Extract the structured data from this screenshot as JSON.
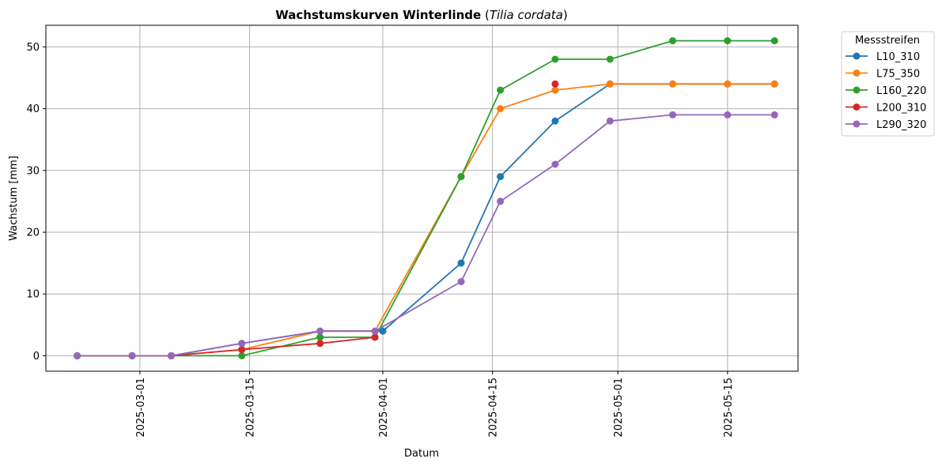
{
  "chart_data": {
    "type": "line",
    "title_main": "Wachstumskurven Winterlinde",
    "title_open": " (",
    "title_species": "Tilia cordata",
    "title_close": ")",
    "xlabel": "Datum",
    "ylabel": "Wachstum [mm]",
    "x_is_date": true,
    "xlim": [
      "2025-02-17",
      "2025-05-24"
    ],
    "ylim": [
      -2.5,
      53.5
    ],
    "x_ticks": [
      "2025-03-01",
      "2025-03-15",
      "2025-04-01",
      "2025-04-15",
      "2025-05-01",
      "2025-05-15"
    ],
    "y_ticks": [
      0,
      10,
      20,
      30,
      40,
      50
    ],
    "grid": true,
    "legend_title": "Messstreifen",
    "legend_position": "outside-top-right",
    "series": [
      {
        "name": "L10_310",
        "color": "#1f77b4",
        "points": [
          [
            "2025-02-21",
            0
          ],
          [
            "2025-02-28",
            0
          ],
          [
            "2025-03-05",
            0
          ],
          [
            "2025-03-14",
            2
          ],
          [
            "2025-03-24",
            4
          ],
          [
            "2025-04-01",
            4
          ],
          [
            "2025-04-11",
            15
          ],
          [
            "2025-04-16",
            29
          ],
          [
            "2025-04-23",
            38
          ],
          [
            "2025-04-30",
            44
          ],
          [
            "2025-05-08",
            44
          ],
          [
            "2025-05-15",
            44
          ],
          [
            "2025-05-21",
            44
          ]
        ]
      },
      {
        "name": "L75_350",
        "color": "#ff7f0e",
        "points": [
          [
            "2025-02-21",
            0
          ],
          [
            "2025-02-28",
            0
          ],
          [
            "2025-03-05",
            0
          ],
          [
            "2025-03-14",
            1
          ],
          [
            "2025-03-24",
            4
          ],
          [
            "2025-03-31",
            4
          ],
          [
            "2025-04-11",
            29
          ],
          [
            "2025-04-16",
            40
          ],
          [
            "2025-04-23",
            43
          ],
          [
            "2025-04-30",
            44
          ],
          [
            "2025-05-08",
            44
          ],
          [
            "2025-05-15",
            44
          ],
          [
            "2025-05-21",
            44
          ]
        ]
      },
      {
        "name": "L160_220",
        "color": "#2ca02c",
        "points": [
          [
            "2025-02-21",
            0
          ],
          [
            "2025-02-28",
            0
          ],
          [
            "2025-03-05",
            0
          ],
          [
            "2025-03-14",
            0
          ],
          [
            "2025-03-24",
            3
          ],
          [
            "2025-03-31",
            3
          ],
          [
            "2025-04-11",
            29
          ],
          [
            "2025-04-16",
            43
          ],
          [
            "2025-04-23",
            48
          ],
          [
            "2025-04-30",
            48
          ],
          [
            "2025-05-08",
            51
          ],
          [
            "2025-05-15",
            51
          ],
          [
            "2025-05-21",
            51
          ]
        ]
      },
      {
        "name": "L200_310",
        "color": "#d62728",
        "points": [
          [
            "2025-02-21",
            0
          ],
          [
            "2025-02-28",
            0
          ],
          [
            "2025-03-05",
            0
          ],
          [
            "2025-03-14",
            1
          ],
          [
            "2025-03-24",
            2
          ],
          [
            "2025-03-31",
            3
          ],
          null,
          [
            "2025-04-23",
            44
          ]
        ]
      },
      {
        "name": "L290_320",
        "color": "#9467bd",
        "points": [
          [
            "2025-02-21",
            0
          ],
          [
            "2025-02-28",
            0
          ],
          [
            "2025-03-05",
            0
          ],
          [
            "2025-03-14",
            2
          ],
          [
            "2025-03-24",
            4
          ],
          [
            "2025-03-31",
            4
          ],
          [
            "2025-04-11",
            12
          ],
          [
            "2025-04-16",
            25
          ],
          [
            "2025-04-23",
            31
          ],
          [
            "2025-04-30",
            38
          ],
          [
            "2025-05-08",
            39
          ],
          [
            "2025-05-15",
            39
          ],
          [
            "2025-05-21",
            39
          ]
        ]
      }
    ]
  }
}
